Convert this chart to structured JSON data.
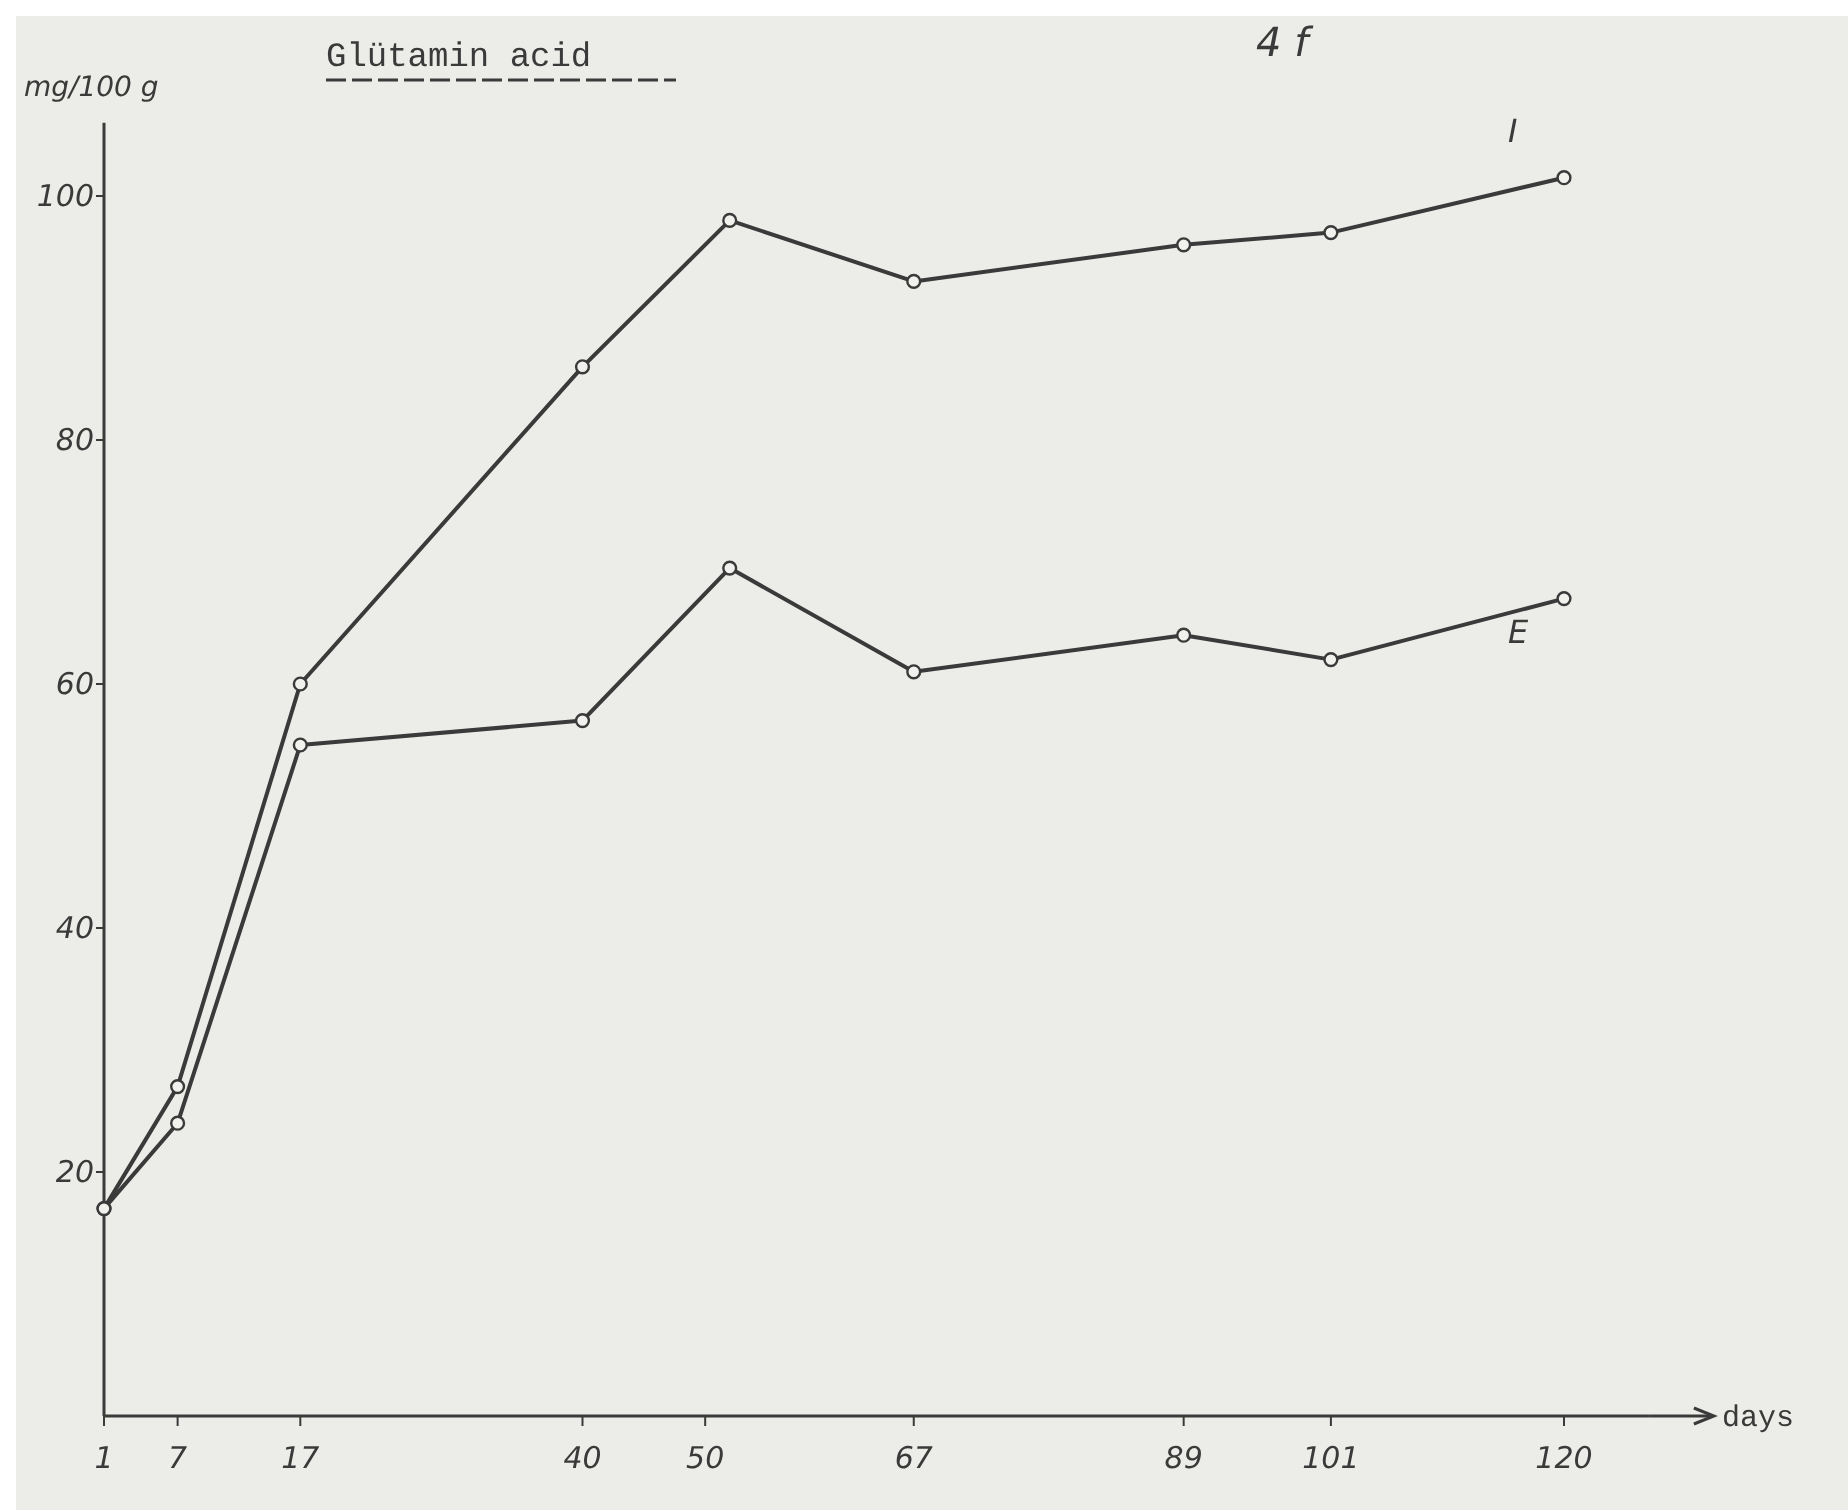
{
  "chart_data": {
    "type": "line",
    "title": "Glütamin acid",
    "xlabel": "days",
    "ylabel": "mg/100 g",
    "annotations": [
      "4 f"
    ],
    "x": [
      1,
      7,
      17,
      40,
      52,
      67,
      89,
      101,
      120
    ],
    "series": [
      {
        "name": "I",
        "color": "#3a3a3a",
        "values": [
          17,
          27,
          60,
          86,
          98,
          93,
          96,
          97,
          101.5
        ]
      },
      {
        "name": "E",
        "color": "#3a3a3a",
        "values": [
          17,
          24,
          55,
          57,
          69.5,
          61,
          64,
          62,
          67
        ]
      }
    ],
    "xlim": [
      1,
      127
    ],
    "xticks": [
      1,
      7,
      17,
      40,
      50,
      67,
      89,
      101,
      120
    ],
    "ylim": [
      0,
      106
    ],
    "yticks": [
      20,
      40,
      60,
      80,
      100
    ],
    "marker": "circle",
    "line_style": "solid",
    "grid": false
  }
}
